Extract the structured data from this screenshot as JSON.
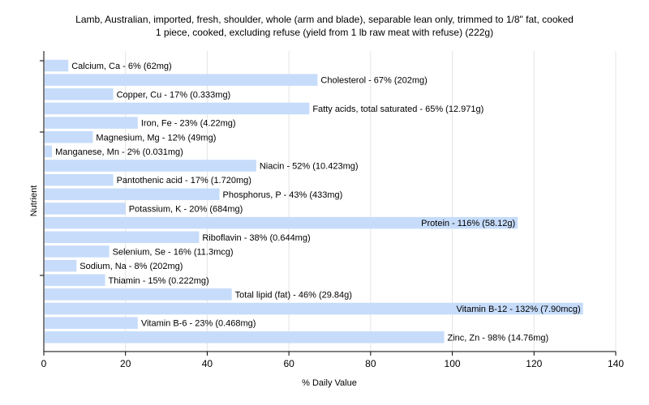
{
  "chart_data": {
    "type": "bar",
    "orientation": "horizontal",
    "title_line1": "Lamb, Australian, imported, fresh, shoulder, whole (arm and blade), separable lean only, trimmed to 1/8\" fat, cooked",
    "title_line2": "1 piece, cooked, excluding refuse (yield from 1 lb raw meat with refuse) (222g)",
    "xlabel": "% Daily Value",
    "ylabel": "Nutrient",
    "xlim": [
      0,
      140
    ],
    "xticks": [
      0,
      20,
      40,
      60,
      80,
      100,
      120,
      140
    ],
    "grid": true,
    "bar_color": "#c6dcfa",
    "categories": [
      "Calcium, Ca",
      "Cholesterol",
      "Copper, Cu",
      "Fatty acids, total saturated",
      "Iron, Fe",
      "Magnesium, Mg",
      "Manganese, Mn",
      "Niacin",
      "Pantothenic acid",
      "Phosphorus, P",
      "Potassium, K",
      "Protein",
      "Riboflavin",
      "Selenium, Se",
      "Sodium, Na",
      "Thiamin",
      "Total lipid (fat)",
      "Vitamin B-12",
      "Vitamin B-6",
      "Zinc, Zn"
    ],
    "values": [
      6,
      67,
      17,
      65,
      23,
      12,
      2,
      52,
      17,
      43,
      20,
      116,
      38,
      16,
      8,
      15,
      46,
      132,
      23,
      98
    ],
    "labels": [
      "Calcium, Ca - 6% (62mg)",
      "Cholesterol - 67% (202mg)",
      "Copper, Cu - 17% (0.333mg)",
      "Fatty acids, total saturated - 65% (12.971g)",
      "Iron, Fe - 23% (4.22mg)",
      "Magnesium, Mg - 12% (49mg)",
      "Manganese, Mn - 2% (0.031mg)",
      "Niacin - 52% (10.423mg)",
      "Pantothenic acid - 17% (1.720mg)",
      "Phosphorus, P - 43% (433mg)",
      "Potassium, K - 20% (684mg)",
      "Protein - 116% (58.12g)",
      "Riboflavin - 38% (0.644mg)",
      "Selenium, Se - 16% (11.3mcg)",
      "Sodium, Na - 8% (202mg)",
      "Thiamin - 15% (0.222mg)",
      "Total lipid (fat) - 46% (29.84g)",
      "Vitamin B-12 - 132% (7.90mcg)",
      "Vitamin B-6 - 23% (0.468mg)",
      "Zinc, Zn - 98% (14.76mg)"
    ]
  }
}
